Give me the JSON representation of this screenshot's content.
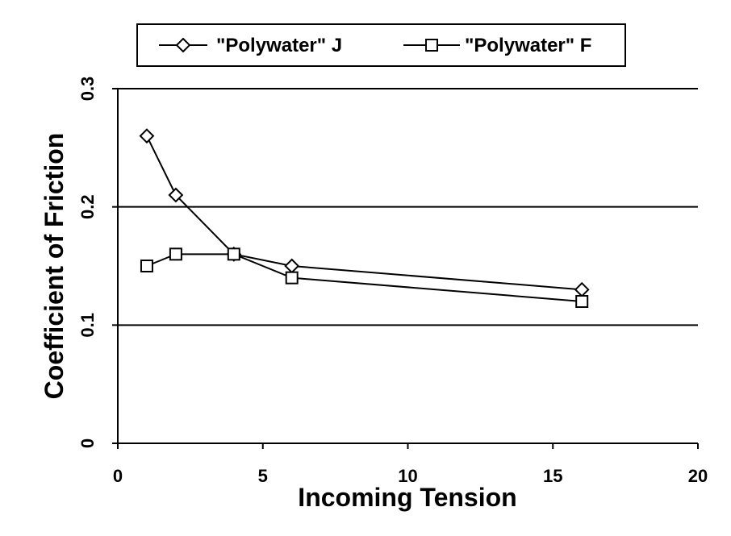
{
  "chart_data": {
    "type": "line",
    "title": "",
    "xlabel": "Incoming Tension",
    "ylabel": "Coefficient of Friction",
    "xlim": [
      0,
      20
    ],
    "ylim": [
      0,
      0.3
    ],
    "x_ticks": [
      0,
      5,
      10,
      15,
      20
    ],
    "x_tick_labels": [
      "0",
      "5",
      "10",
      "15",
      "20"
    ],
    "y_ticks": [
      0,
      0.1,
      0.2,
      0.3
    ],
    "y_tick_labels": [
      "0",
      "0.1",
      "0.2",
      "0.3"
    ],
    "grid": "horizontal",
    "legend_position": "top",
    "series": [
      {
        "name": "\"Polywater\" J",
        "marker": "diamond",
        "color": "#000000",
        "x": [
          1,
          2,
          4,
          6,
          16
        ],
        "y": [
          0.26,
          0.21,
          0.16,
          0.15,
          0.13
        ]
      },
      {
        "name": "\"Polywater\" F",
        "marker": "square",
        "color": "#000000",
        "x": [
          1,
          2,
          4,
          6,
          16
        ],
        "y": [
          0.15,
          0.16,
          0.16,
          0.14,
          0.12
        ]
      }
    ]
  }
}
